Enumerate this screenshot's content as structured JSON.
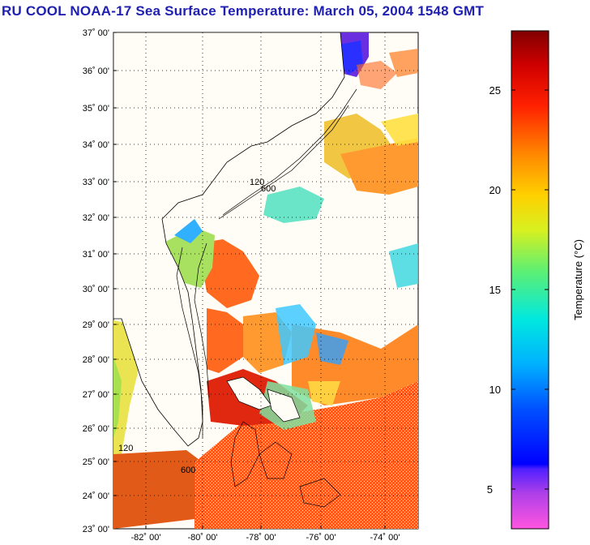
{
  "title": "RU COOL  NOAA-17  Sea Surface Temperature:  March 05, 2004 1548 GMT",
  "map": {
    "lat_labels": [
      "37˚ 00'",
      "36˚ 00'",
      "35˚ 00'",
      "34˚ 00'",
      "33˚ 00'",
      "32˚ 00'",
      "31˚ 00'",
      "30˚ 00'",
      "29˚ 00'",
      "28˚ 00'",
      "27˚ 00'",
      "26˚ 00'",
      "25˚ 00'",
      "24˚ 00'",
      "23˚ 00'"
    ],
    "lon_labels": [
      "-82˚ 00'",
      "-80˚ 00'",
      "-78˚ 00'",
      "-76˚ 00'",
      "-74˚ 00'"
    ],
    "lat_range": [
      23,
      37
    ],
    "lon_range": [
      -83.2,
      -73.2
    ],
    "grid": "dotted",
    "isobath_labels": [
      "120",
      "600"
    ]
  },
  "colorbar": {
    "label": "Temperature (°C)",
    "ticks": [
      "25",
      "20",
      "15",
      "10",
      "5"
    ],
    "range": [
      3,
      28
    ]
  }
}
